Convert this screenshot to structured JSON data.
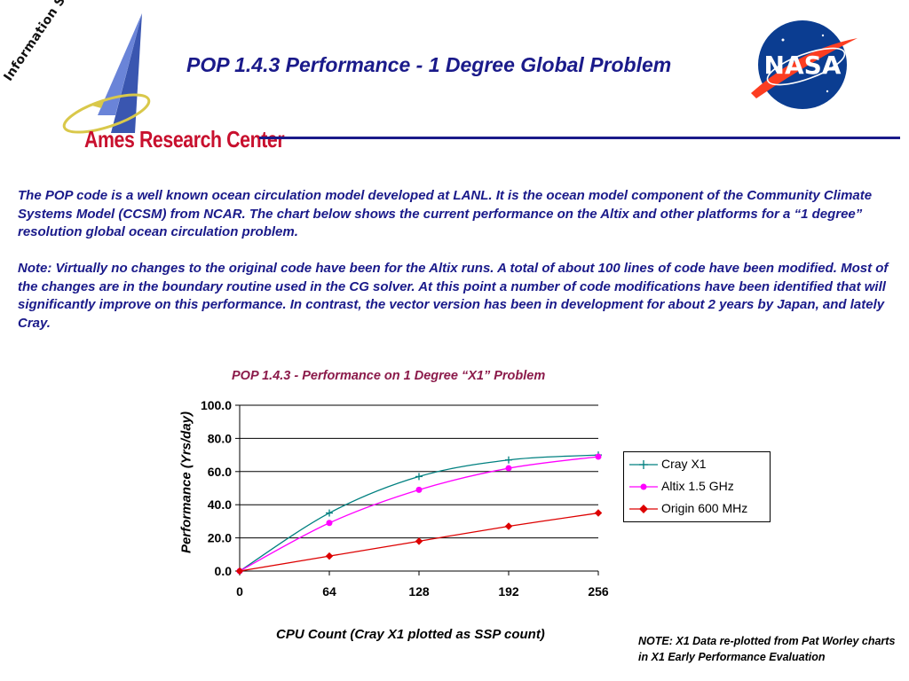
{
  "header": {
    "title": "POP 1.4.3 Performance - 1 Degree Global Problem",
    "logo_rotated_text": "Information Sciences & Technology",
    "logo_center_text": "Ames Research Center",
    "nasa_text": "NASA"
  },
  "body": {
    "paragraph1": "The POP code is a well known ocean circulation model developed at LANL. It is the ocean model component of the Community Climate Systems Model (CCSM) from NCAR. The chart below shows the current performance on the Altix and other platforms for a “1 degree” resolution global ocean circulation problem.",
    "paragraph2": "Note: Virtually no changes to the original code have been for the Altix runs. A total of about 100 lines of code have been modified. Most of the changes are in the boundary routine used in the CG solver. At this point a number of code modifications have been identified that will significantly improve on this performance. In contrast, the vector version has been in development for about 2 years by Japan, and lately Cray."
  },
  "chart_data": {
    "type": "line",
    "title": "POP 1.4.3  - Performance on 1 Degree “X1” Problem",
    "xlabel": "CPU Count (Cray X1 plotted as SSP count)",
    "ylabel": "Performance (Yrs/day)",
    "x": [
      0,
      64,
      128,
      192,
      256
    ],
    "x_tick_labels": [
      "0",
      "64",
      "128",
      "192",
      "256"
    ],
    "y_tick_labels": [
      "0.0",
      "20.0",
      "40.0",
      "60.0",
      "80.0",
      "100.0"
    ],
    "xlim": [
      0,
      256
    ],
    "ylim": [
      0,
      100
    ],
    "grid": "horizontal",
    "legend_position": "right",
    "series": [
      {
        "name": "Cray X1",
        "values": [
          0,
          35,
          57,
          67,
          70
        ],
        "color": "#008080",
        "marker": "plus"
      },
      {
        "name": "Altix 1.5 GHz",
        "values": [
          0,
          29,
          49,
          62,
          69
        ],
        "color": "#ff00ff",
        "marker": "circle"
      },
      {
        "name": "Origin 600 MHz",
        "values": [
          0,
          9,
          18,
          27,
          35
        ],
        "color": "#dd0000",
        "marker": "diamond"
      }
    ]
  },
  "footer": {
    "note": "NOTE: X1 Data re-plotted from Pat Worley charts in X1 Early Performance Evaluation"
  },
  "colors": {
    "title_blue": "#1a1a8a",
    "ames_red": "#c8102e",
    "chart_title": "#8b1a4a"
  }
}
